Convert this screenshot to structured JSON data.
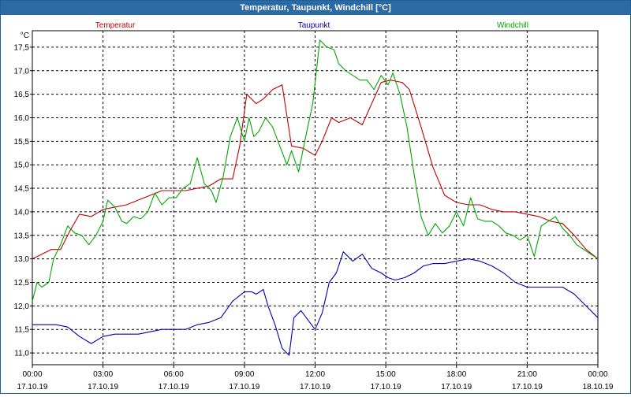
{
  "window": {
    "title": "Temperatur, Taupunkt, Windchill [°C]"
  },
  "chart_data": {
    "type": "line",
    "title": "Temperatur, Taupunkt, Windchill [°C]",
    "ylabel": "°C",
    "ylim": [
      10.75,
      17.85
    ],
    "xlim": [
      0,
      24
    ],
    "grid": true,
    "yticks": [
      "11,0",
      "11,5",
      "12,0",
      "12,5",
      "13,0",
      "13,5",
      "14,0",
      "14,5",
      "15,0",
      "15,5",
      "16,0",
      "16,5",
      "17,0",
      "17,5"
    ],
    "xticks": [
      {
        "time": "00:00",
        "date": "17.10.19"
      },
      {
        "time": "03:00",
        "date": "17.10.19"
      },
      {
        "time": "06:00",
        "date": "17.10.19"
      },
      {
        "time": "09:00",
        "date": "17.10.19"
      },
      {
        "time": "12:00",
        "date": "17.10.19"
      },
      {
        "time": "15:00",
        "date": "17.10.19"
      },
      {
        "time": "18:00",
        "date": "17.10.19"
      },
      {
        "time": "21:00",
        "date": "17.10.19"
      },
      {
        "time": "00:00",
        "date": "18.10.19"
      }
    ],
    "series": [
      {
        "name": "Temperatur",
        "color": "#c00000",
        "legend_position": "left",
        "x": [
          0,
          0.4,
          0.8,
          1.2,
          1.6,
          2.0,
          2.5,
          3.0,
          3.5,
          4.0,
          4.5,
          5.0,
          5.5,
          6.0,
          6.5,
          7.0,
          7.5,
          8.0,
          8.5,
          8.8,
          9.1,
          9.5,
          9.8,
          10.2,
          10.6,
          11.0,
          11.5,
          12.0,
          12.3,
          12.7,
          13.0,
          13.5,
          14.0,
          14.4,
          14.8,
          15.2,
          15.7,
          16.0,
          16.5,
          17.0,
          17.5,
          18.0,
          18.5,
          19.0,
          19.5,
          20.0,
          20.5,
          21.0,
          21.5,
          22.0,
          22.5,
          23.0,
          23.5,
          24.0
        ],
        "values": [
          13.0,
          13.1,
          13.2,
          13.2,
          13.6,
          13.95,
          13.9,
          14.05,
          14.1,
          14.15,
          14.25,
          14.35,
          14.45,
          14.45,
          14.45,
          14.5,
          14.55,
          14.7,
          14.7,
          15.4,
          16.5,
          16.3,
          16.4,
          16.6,
          16.7,
          15.4,
          15.35,
          15.2,
          15.5,
          16.0,
          15.9,
          16.0,
          15.85,
          16.3,
          16.75,
          16.8,
          16.75,
          16.6,
          15.8,
          14.95,
          14.35,
          14.2,
          14.15,
          14.15,
          14.05,
          14.0,
          14.0,
          13.95,
          13.9,
          13.8,
          13.75,
          13.5,
          13.2,
          13.0
        ]
      },
      {
        "name": "Taupunkt",
        "color": "#0000b0",
        "legend_position": "center",
        "x": [
          0,
          0.5,
          1.0,
          1.5,
          2.0,
          2.5,
          3.0,
          3.5,
          4.0,
          4.5,
          5.0,
          5.5,
          6.0,
          6.5,
          7.0,
          7.5,
          8.0,
          8.5,
          9.0,
          9.3,
          9.5,
          9.8,
          10.0,
          10.3,
          10.6,
          10.9,
          11.1,
          11.4,
          11.7,
          12.0,
          12.3,
          12.6,
          12.9,
          13.2,
          13.6,
          14.0,
          14.4,
          14.8,
          15.1,
          15.4,
          15.8,
          16.2,
          16.6,
          17.0,
          17.5,
          18.0,
          18.5,
          19.0,
          19.5,
          20.0,
          20.5,
          21.0,
          21.5,
          22.0,
          22.5,
          23.0,
          23.5,
          24.0
        ],
        "values": [
          11.6,
          11.6,
          11.6,
          11.55,
          11.35,
          11.2,
          11.35,
          11.4,
          11.4,
          11.4,
          11.45,
          11.5,
          11.5,
          11.5,
          11.6,
          11.65,
          11.75,
          12.1,
          12.3,
          12.3,
          12.25,
          12.35,
          12.0,
          11.6,
          11.1,
          10.95,
          11.75,
          11.9,
          11.7,
          11.5,
          11.85,
          12.5,
          12.7,
          13.15,
          12.95,
          13.1,
          12.8,
          12.7,
          12.6,
          12.55,
          12.6,
          12.7,
          12.85,
          12.9,
          12.9,
          12.95,
          13.0,
          12.95,
          12.85,
          12.7,
          12.5,
          12.4,
          12.4,
          12.4,
          12.4,
          12.25,
          12.0,
          11.75
        ]
      },
      {
        "name": "Windchill",
        "color": "#00a800",
        "legend_position": "right",
        "x": [
          0,
          0.2,
          0.4,
          0.7,
          0.9,
          1.2,
          1.5,
          1.8,
          2.1,
          2.4,
          2.7,
          3.0,
          3.2,
          3.5,
          3.8,
          4.0,
          4.3,
          4.6,
          4.9,
          5.2,
          5.5,
          5.8,
          6.1,
          6.4,
          6.7,
          7.0,
          7.3,
          7.6,
          7.8,
          8.1,
          8.4,
          8.7,
          9.0,
          9.2,
          9.4,
          9.6,
          9.9,
          10.2,
          10.5,
          10.8,
          11.0,
          11.3,
          11.6,
          11.9,
          12.2,
          12.5,
          12.8,
          13.0,
          13.3,
          13.6,
          13.9,
          14.2,
          14.5,
          14.8,
          15.1,
          15.3,
          15.6,
          15.9,
          16.2,
          16.5,
          16.8,
          17.1,
          17.4,
          17.7,
          18.0,
          18.3,
          18.6,
          18.9,
          19.2,
          19.5,
          19.8,
          20.1,
          20.4,
          20.7,
          21.0,
          21.3,
          21.6,
          21.9,
          22.2,
          22.5,
          22.8,
          23.1,
          23.4,
          23.7,
          24.0
        ],
        "values": [
          12.1,
          12.5,
          12.4,
          12.5,
          13.0,
          13.3,
          13.7,
          13.55,
          13.5,
          13.3,
          13.5,
          13.8,
          14.25,
          14.1,
          13.8,
          13.75,
          13.9,
          13.85,
          14.0,
          14.4,
          14.15,
          14.3,
          14.3,
          14.5,
          14.6,
          15.15,
          14.6,
          14.45,
          14.2,
          14.75,
          15.6,
          16.0,
          15.5,
          16.0,
          15.6,
          15.7,
          16.0,
          15.8,
          15.4,
          15.0,
          15.3,
          14.85,
          15.6,
          16.3,
          17.65,
          17.5,
          17.45,
          17.15,
          17.0,
          16.9,
          16.8,
          16.8,
          16.6,
          16.9,
          16.7,
          16.95,
          16.5,
          15.8,
          14.8,
          13.9,
          13.5,
          13.75,
          13.55,
          13.7,
          14.0,
          13.7,
          14.3,
          13.85,
          13.8,
          13.8,
          13.7,
          13.55,
          13.5,
          13.4,
          13.5,
          13.05,
          13.7,
          13.8,
          13.9,
          13.65,
          13.5,
          13.3,
          13.2,
          13.1,
          13.0
        ]
      }
    ]
  }
}
